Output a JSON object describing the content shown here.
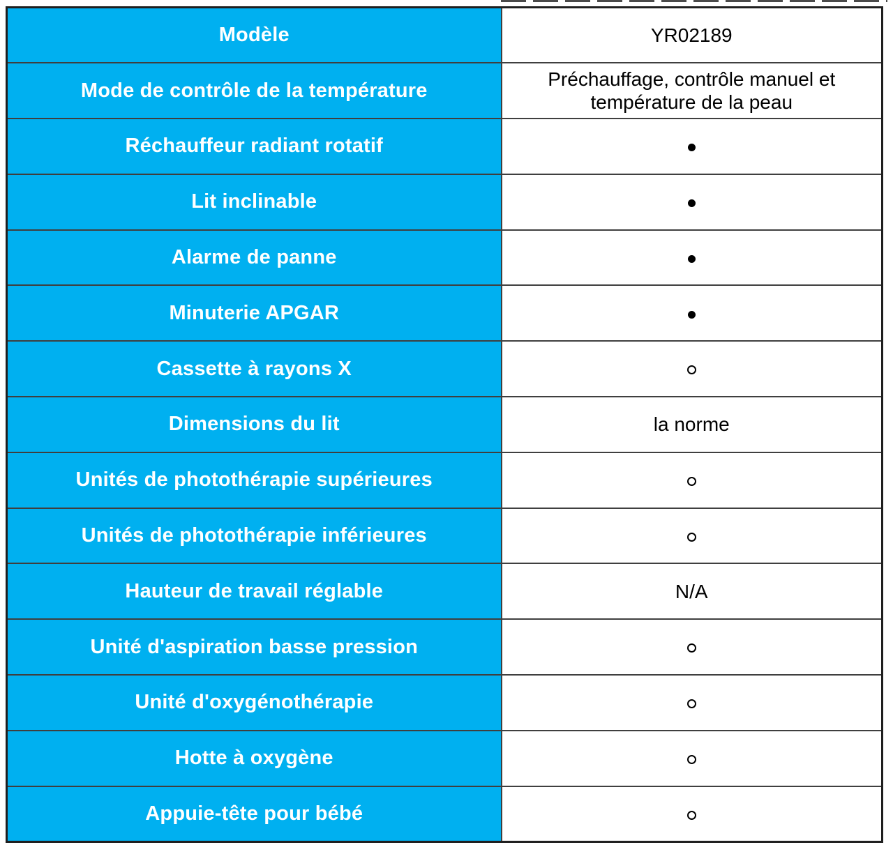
{
  "colors": {
    "accent_blue": "#00b0f0",
    "grid_border": "#3f3f3f",
    "outer_border": "#1f1f1f",
    "label_text": "#ffffff",
    "value_text": "#000000",
    "artifact_gray": "#4a4a4a"
  },
  "icons": {
    "filled_dot": "●",
    "hollow_dot": "○"
  },
  "table": {
    "columns": [
      "label",
      "value"
    ],
    "rows": [
      {
        "label": "Modèle",
        "value_type": "text",
        "value": "YR02189"
      },
      {
        "label": "Mode de contrôle de la température",
        "value_type": "text",
        "value": "Préchauffage, contrôle manuel et température de la peau"
      },
      {
        "label": "Réchauffeur radiant rotatif",
        "value_type": "dot-filled",
        "value": "●"
      },
      {
        "label": "Lit inclinable",
        "value_type": "dot-filled",
        "value": "●"
      },
      {
        "label": "Alarme de panne",
        "value_type": "dot-filled",
        "value": "●"
      },
      {
        "label": "Minuterie APGAR",
        "value_type": "dot-filled",
        "value": "●"
      },
      {
        "label": "Cassette à rayons X",
        "value_type": "dot-hollow",
        "value": "○"
      },
      {
        "label": "Dimensions du lit",
        "value_type": "text",
        "value": "la norme"
      },
      {
        "label": "Unités de photothérapie supérieures",
        "value_type": "dot-hollow",
        "value": "○"
      },
      {
        "label": "Unités de photothérapie inférieures",
        "value_type": "dot-hollow",
        "value": "○"
      },
      {
        "label": "Hauteur de travail réglable",
        "value_type": "text",
        "value": "N/A"
      },
      {
        "label": "Unité d'aspiration basse pression",
        "value_type": "dot-hollow",
        "value": "○"
      },
      {
        "label": "Unité d'oxygénothérapie",
        "value_type": "dot-hollow",
        "value": "○"
      },
      {
        "label": "Hotte à oxygène",
        "value_type": "dot-hollow",
        "value": "○"
      },
      {
        "label": "Appuie-tête pour bébé",
        "value_type": "dot-hollow",
        "value": "○"
      }
    ]
  }
}
